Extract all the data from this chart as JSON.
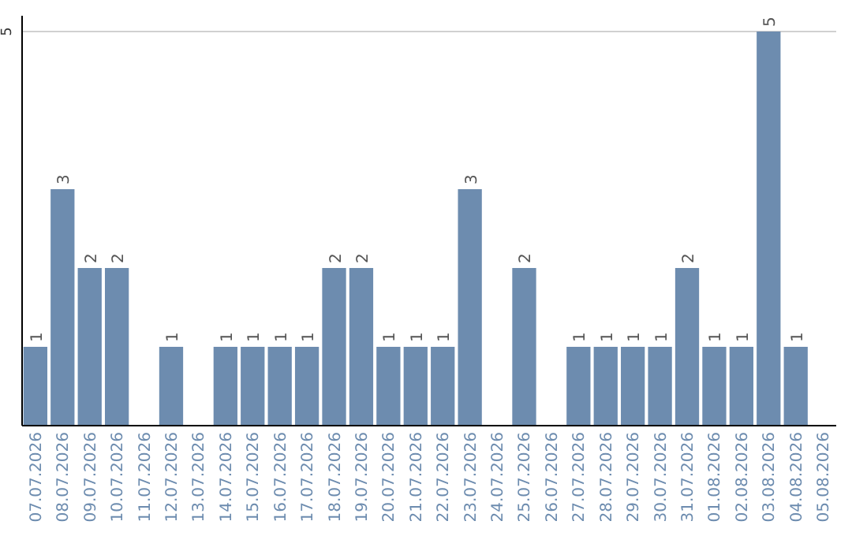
{
  "chart_data": {
    "type": "bar",
    "categories": [
      "07.07.2026",
      "08.07.2026",
      "09.07.2026",
      "10.07.2026",
      "11.07.2026",
      "12.07.2026",
      "13.07.2026",
      "14.07.2026",
      "15.07.2026",
      "16.07.2026",
      "17.07.2026",
      "18.07.2026",
      "19.07.2026",
      "20.07.2026",
      "21.07.2026",
      "22.07.2026",
      "23.07.2026",
      "24.07.2026",
      "25.07.2026",
      "26.07.2026",
      "27.07.2026",
      "28.07.2026",
      "29.07.2026",
      "30.07.2026",
      "31.07.2026",
      "01.08.2026",
      "02.08.2026",
      "03.08.2026",
      "04.08.2026",
      "05.08.2026"
    ],
    "values": [
      1,
      3,
      2,
      2,
      null,
      1,
      null,
      1,
      1,
      1,
      1,
      2,
      2,
      1,
      1,
      1,
      3,
      null,
      2,
      null,
      1,
      1,
      1,
      1,
      2,
      1,
      1,
      5,
      1,
      null
    ],
    "color": "#6d8caf",
    "ylim": [
      0,
      5.2
    ],
    "yticks": [
      5
    ],
    "grid": "y",
    "data_labels": true
  }
}
